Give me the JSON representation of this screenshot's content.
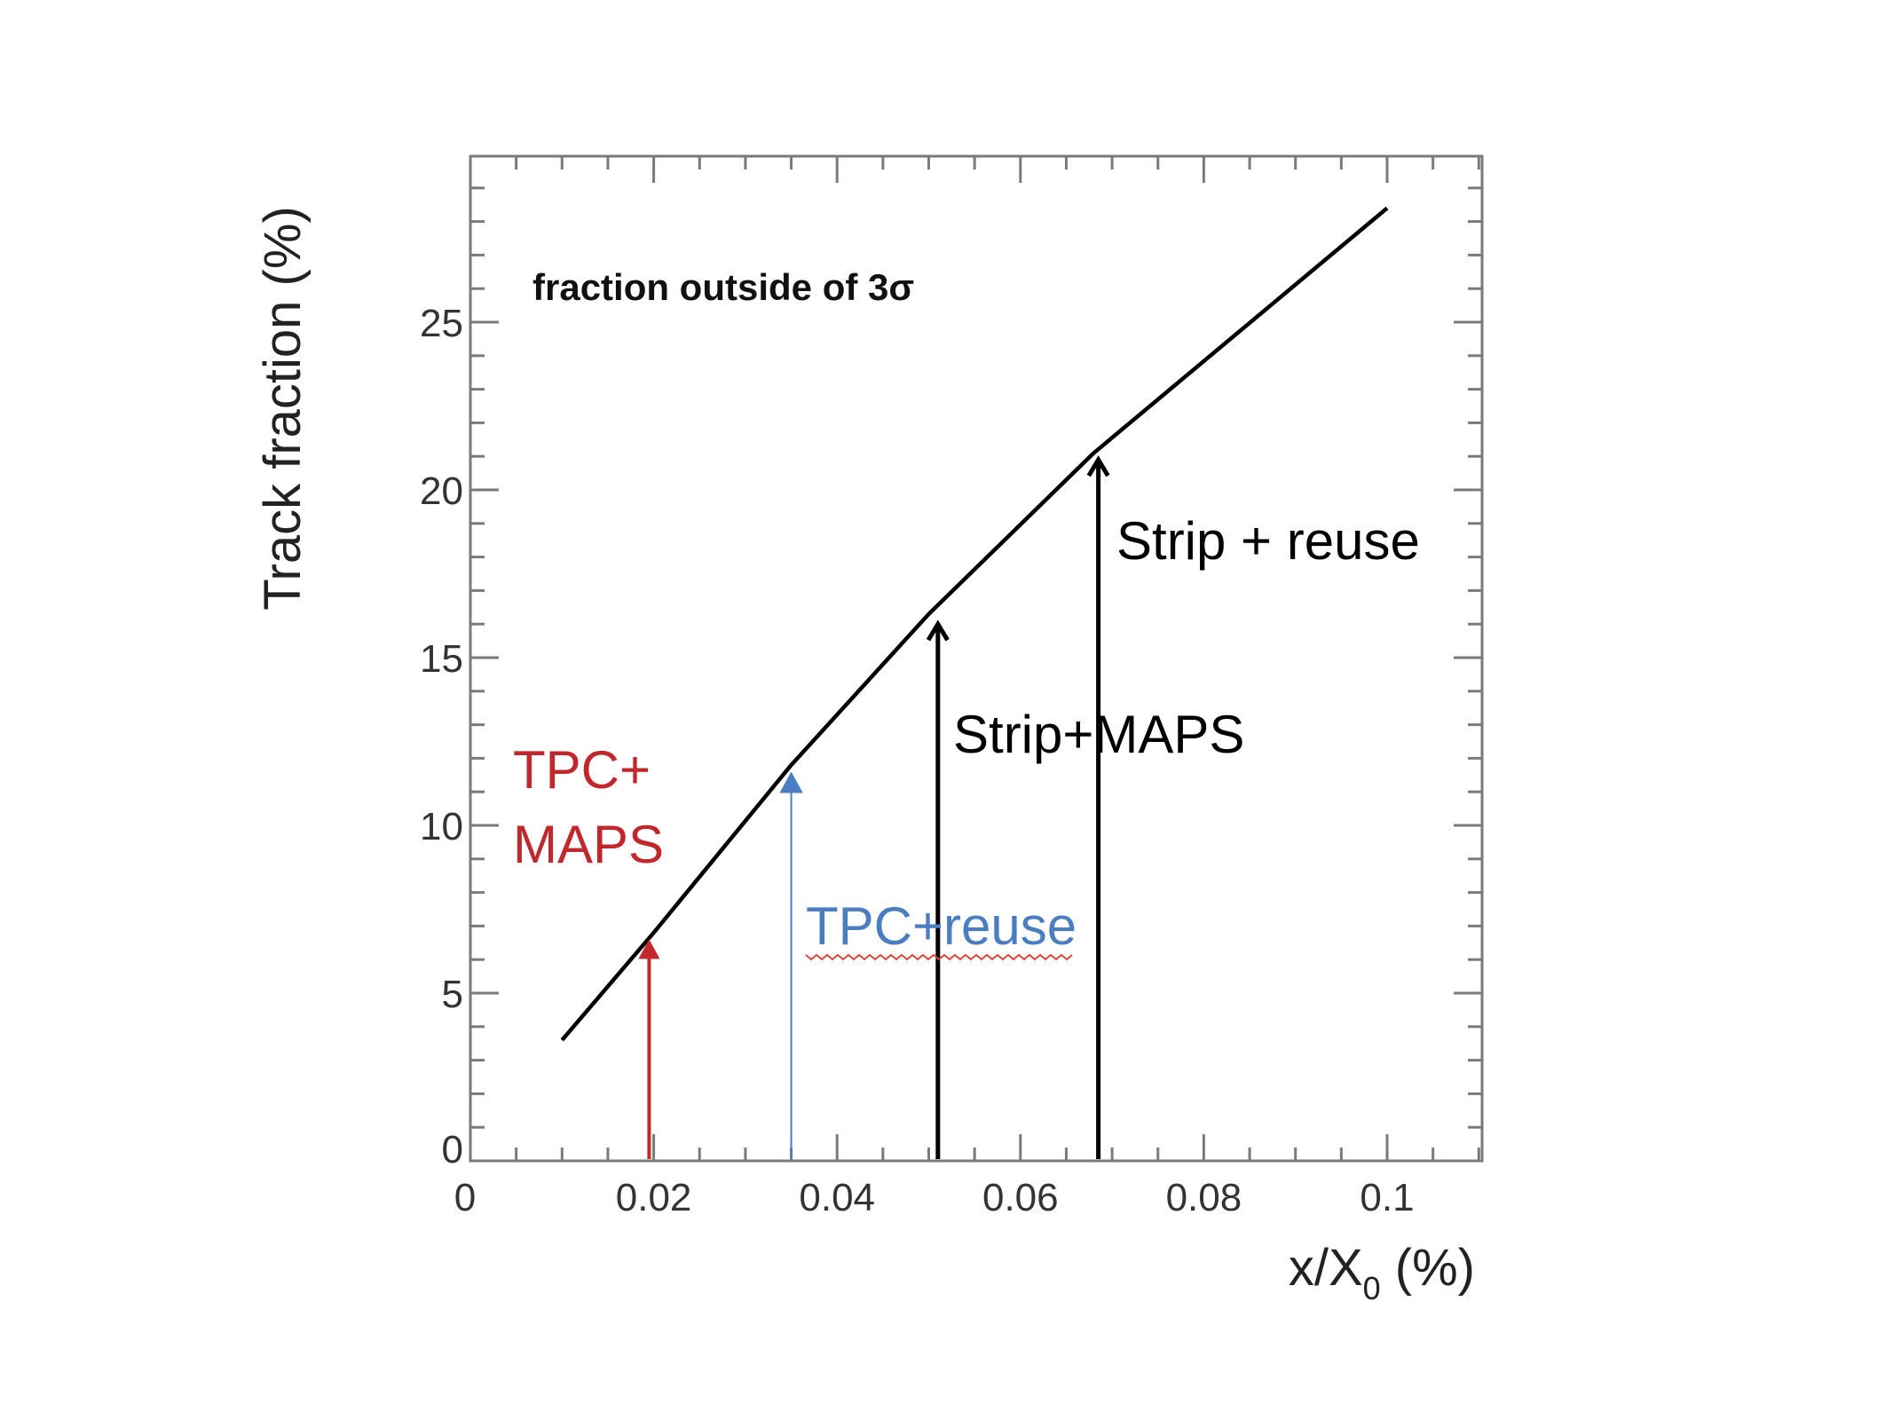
{
  "chart_data": {
    "type": "line",
    "title": "fraction outside of 3σ",
    "xlabel": "x/X",
    "xlabel_sub": "0",
    "xlabel_suffix": " (%)",
    "ylabel": "Track fraction (%)",
    "xlim": [
      0,
      0.11
    ],
    "ylim": [
      0,
      30
    ],
    "x_ticks": [
      0,
      0.02,
      0.04,
      0.06,
      0.08,
      0.1
    ],
    "x_tick_labels": [
      "0",
      "0.02",
      "0.04",
      "0.06",
      "0.08",
      "0.1"
    ],
    "y_ticks": [
      0,
      5,
      10,
      15,
      20,
      25
    ],
    "y_tick_labels": [
      "0",
      "5",
      "10",
      "15",
      "20",
      "25"
    ],
    "grid": false,
    "series": [
      {
        "color": "#000000",
        "x": [
          0.01,
          0.02,
          0.035,
          0.05,
          0.068,
          0.1
        ],
        "y": [
          3.6,
          6.8,
          11.8,
          16.3,
          21.1,
          28.4
        ]
      }
    ],
    "annotations": [
      {
        "lines": [
          "TPC+",
          "MAPS"
        ],
        "x": 0.0195,
        "y": 6.6,
        "color": "#c0282d",
        "underline": false
      },
      {
        "lines": [
          "TPC+reuse"
        ],
        "x": 0.035,
        "y": 11.6,
        "color": "#4a7ec0",
        "underline": true
      },
      {
        "lines": [
          "Strip+MAPS"
        ],
        "x": 0.051,
        "y": 16.0,
        "color": "#000000",
        "underline": false
      },
      {
        "lines": [
          "Strip + reuse"
        ],
        "x": 0.0685,
        "y": 20.9,
        "color": "#000000",
        "underline": false
      }
    ]
  }
}
